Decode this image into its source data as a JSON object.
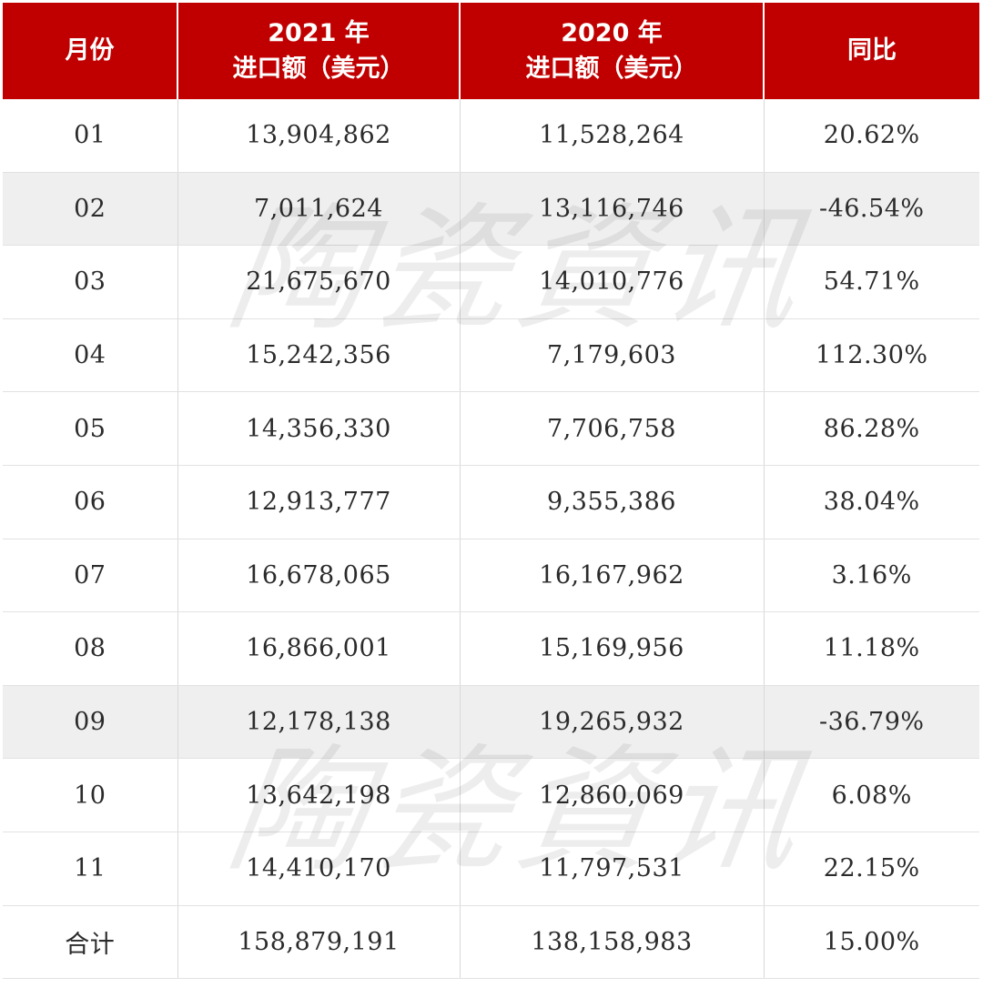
{
  "table": {
    "headers": {
      "month": "月份",
      "col2021_line1": "2021 年",
      "col2021_line2": "进口额（美元）",
      "col2020_line1": "2020 年",
      "col2020_line2": "进口额（美元）",
      "yoy": "同比"
    },
    "rows": [
      {
        "month": "01",
        "v2021": "13,904,862",
        "v2020": "11,528,264",
        "yoy": "20.62%"
      },
      {
        "month": "02",
        "v2021": "7,011,624",
        "v2020": "13,116,746",
        "yoy": "-46.54%"
      },
      {
        "month": "03",
        "v2021": "21,675,670",
        "v2020": "14,010,776",
        "yoy": "54.71%"
      },
      {
        "month": "04",
        "v2021": "15,242,356",
        "v2020": "7,179,603",
        "yoy": "112.30%"
      },
      {
        "month": "05",
        "v2021": "14,356,330",
        "v2020": "7,706,758",
        "yoy": "86.28%"
      },
      {
        "month": "06",
        "v2021": "12,913,777",
        "v2020": "9,355,386",
        "yoy": "38.04%"
      },
      {
        "month": "07",
        "v2021": "16,678,065",
        "v2020": "16,167,962",
        "yoy": "3.16%"
      },
      {
        "month": "08",
        "v2021": "16,866,001",
        "v2020": "15,169,956",
        "yoy": "11.18%"
      },
      {
        "month": "09",
        "v2021": "12,178,138",
        "v2020": "19,265,932",
        "yoy": "-36.79%"
      },
      {
        "month": "10",
        "v2021": "13,642,198",
        "v2020": "12,860,069",
        "yoy": "6.08%"
      },
      {
        "month": "11",
        "v2021": "14,410,170",
        "v2020": "11,797,531",
        "yoy": "22.15%"
      },
      {
        "month": "合计",
        "v2021": "158,879,191",
        "v2020": "138,158,983",
        "yoy": "15.00%"
      }
    ]
  },
  "watermark": {
    "text": "陶瓷資讯"
  },
  "colors": {
    "header_bg": "#c00000",
    "header_text": "#ffffff",
    "shaded_row": "#efefef",
    "grid": "#d9d9d9"
  }
}
